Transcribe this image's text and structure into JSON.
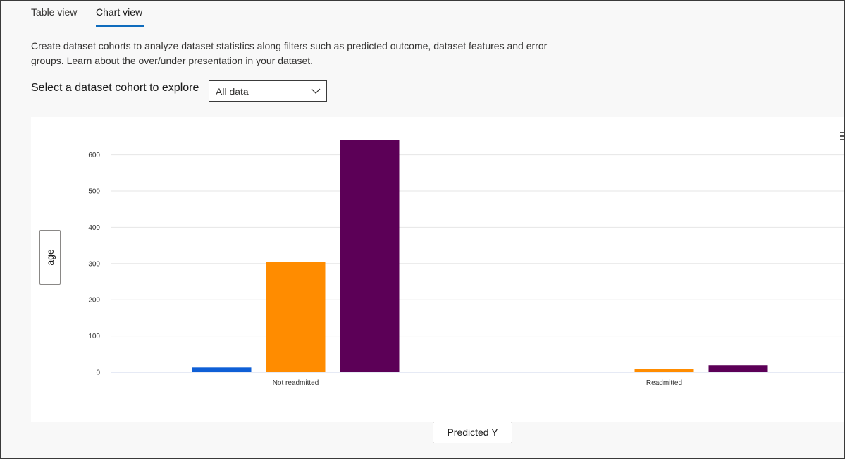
{
  "tabs": [
    {
      "label": "Table view",
      "selected": false
    },
    {
      "label": "Chart view",
      "selected": true
    }
  ],
  "description": "Create dataset cohorts to analyze dataset statistics along filters such as predicted outcome, dataset features and error groups. Learn about the over/under presentation in your dataset.",
  "cohort_selector": {
    "label": "Select a dataset cohort to explore",
    "selected": "All data"
  },
  "axis_buttons": {
    "y": "age",
    "x": "Predicted Y"
  },
  "chart_data": {
    "type": "bar",
    "categories": [
      "Not readmitted",
      "Readmitted"
    ],
    "series": [
      {
        "color": "#0f5fd6",
        "values": [
          13,
          0
        ]
      },
      {
        "color": "#ff8c00",
        "values": [
          304,
          8
        ]
      },
      {
        "color": "#5c0057",
        "values": [
          640,
          19
        ]
      }
    ],
    "ylim": [
      0,
      640
    ],
    "yticks": [
      0,
      100,
      200,
      300,
      400,
      500,
      600
    ],
    "grid": true,
    "legend": "none"
  }
}
